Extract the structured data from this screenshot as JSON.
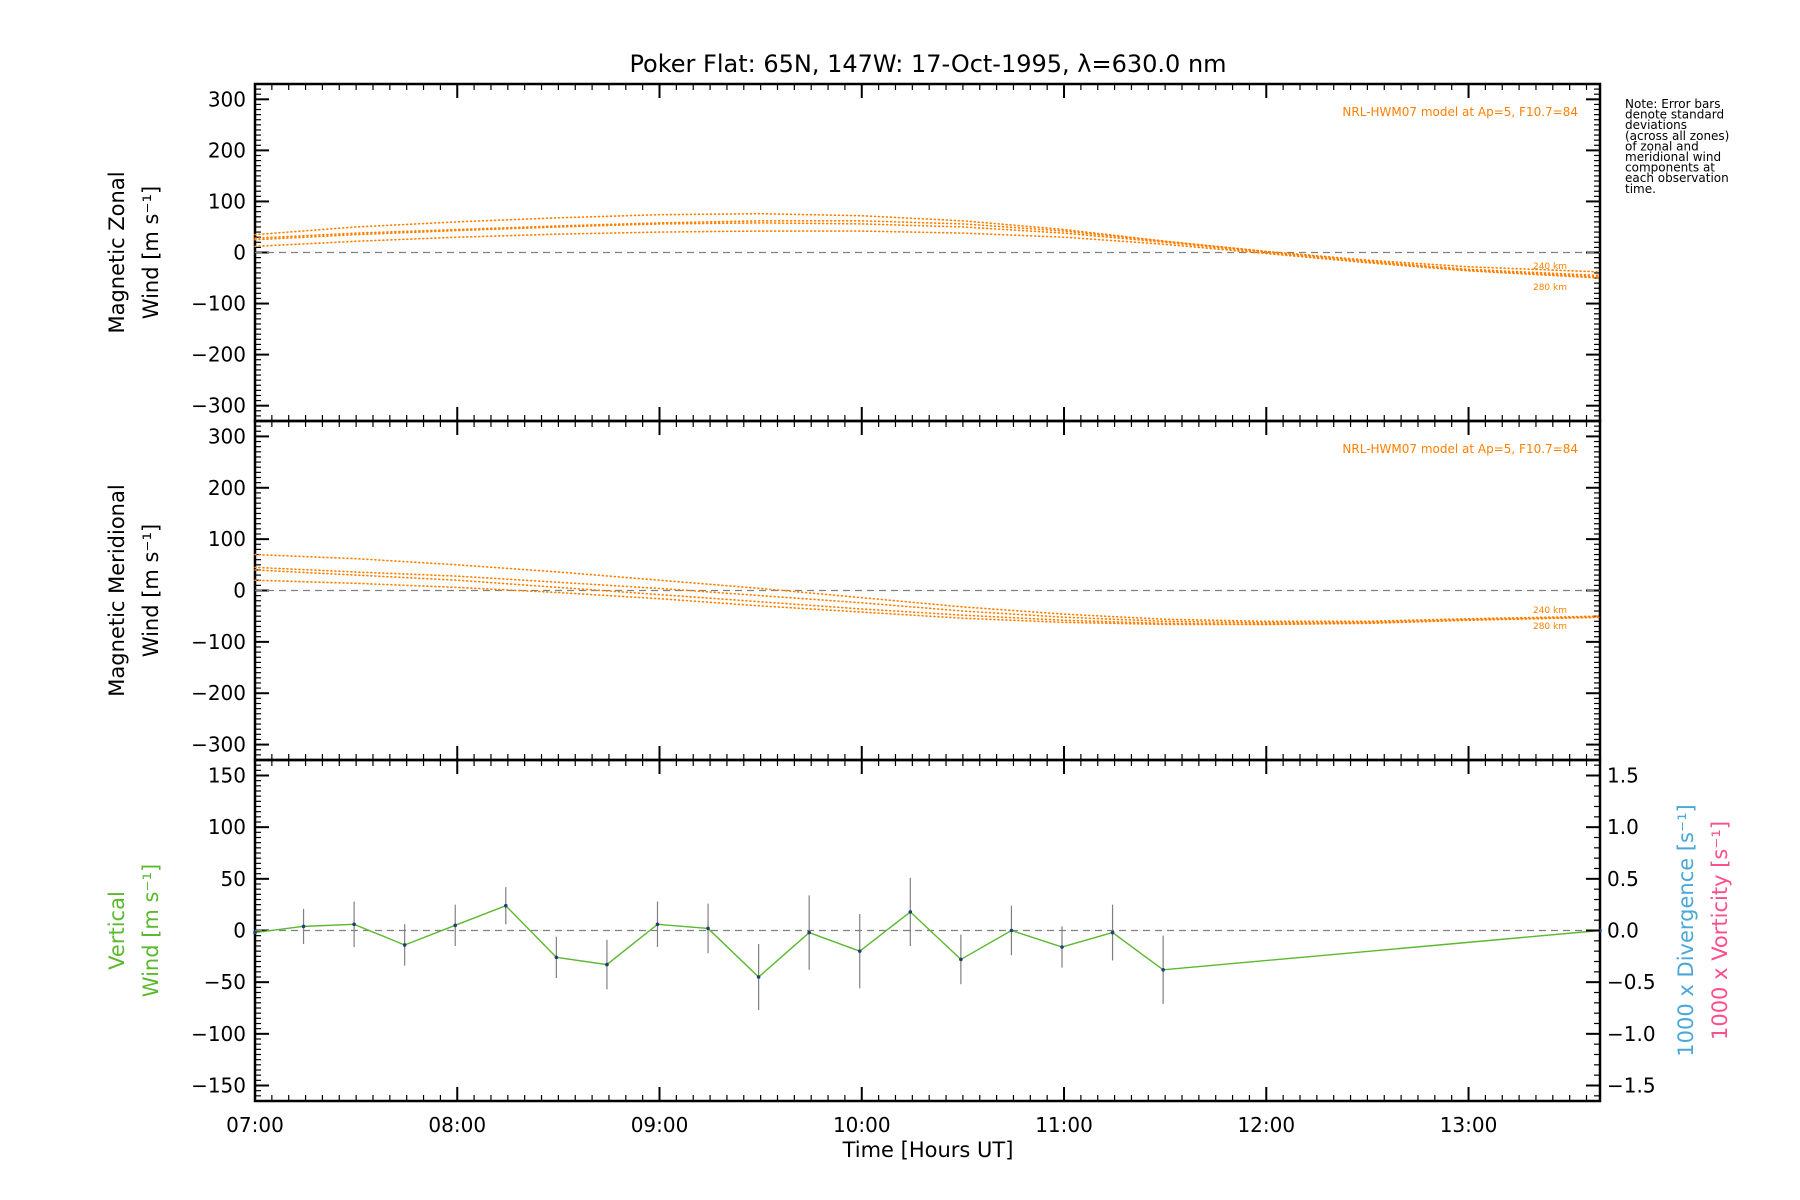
{
  "title": "Poker Flat: 65N, 147W: 17-Oct-1995, λ=630.0 nm",
  "note": [
    "Note: Error bars",
    "denote standard",
    "deviations",
    "(across all zones)",
    "of zonal and",
    "meridional wind",
    "components at",
    "each observation",
    "time."
  ],
  "xlabel": "Time [Hours UT]",
  "colors": {
    "model": "#ff8000",
    "vertical": "#5cb82e",
    "divergence": "#4aa8d8",
    "vorticity": "#ff4f8b",
    "zero_line": "#808080",
    "errorbar": "#808080"
  },
  "chart_data": [
    {
      "type": "line",
      "panel": "zonal",
      "ylabel_lines": [
        "Magnetic Zonal",
        "Wind [m s⁻¹]"
      ],
      "ylim": [
        -330,
        330
      ],
      "yticks": [
        -300,
        -200,
        -100,
        0,
        100,
        200,
        300
      ],
      "xlim": [
        7.0,
        13.65
      ],
      "xticks": [
        "07:00",
        "08:00",
        "09:00",
        "10:00",
        "11:00",
        "12:00",
        "13:00"
      ],
      "annotation": "NRL-HWM07 model at Ap=5, F10.7=84",
      "alt_labels": [
        "240 km",
        "280 km"
      ],
      "series": [
        {
          "x": [
            7.0,
            7.5,
            8.0,
            8.5,
            9.0,
            9.5,
            10.0,
            10.5,
            11.0,
            11.5,
            12.0,
            12.5,
            13.0,
            13.65
          ],
          "values": [
            35,
            50,
            60,
            68,
            74,
            76,
            72,
            62,
            45,
            22,
            2,
            -15,
            -28,
            -38
          ]
        },
        {
          "x": [
            7.0,
            7.5,
            8.0,
            8.5,
            9.0,
            9.5,
            10.0,
            10.5,
            11.0,
            11.5,
            12.0,
            12.5,
            13.0,
            13.65
          ],
          "values": [
            28,
            38,
            45,
            52,
            58,
            62,
            62,
            56,
            42,
            22,
            2,
            -17,
            -33,
            -45
          ]
        },
        {
          "x": [
            7.0,
            7.5,
            8.0,
            8.5,
            9.0,
            9.5,
            10.0,
            10.5,
            11.0,
            11.5,
            12.0,
            12.5,
            13.0,
            13.65
          ],
          "values": [
            25,
            35,
            43,
            50,
            56,
            58,
            56,
            50,
            38,
            20,
            0,
            -18,
            -35,
            -48
          ]
        },
        {
          "x": [
            7.0,
            7.5,
            8.0,
            8.5,
            9.0,
            9.5,
            10.0,
            10.5,
            11.0,
            11.5,
            12.0,
            12.5,
            13.0,
            13.65
          ],
          "values": [
            12,
            22,
            30,
            36,
            40,
            42,
            42,
            38,
            30,
            16,
            -2,
            -20,
            -36,
            -50
          ]
        }
      ]
    },
    {
      "type": "line",
      "panel": "meridional",
      "ylabel_lines": [
        "Magnetic Meridional",
        "Wind [m s⁻¹]"
      ],
      "ylim": [
        -330,
        330
      ],
      "yticks": [
        -300,
        -200,
        -100,
        0,
        100,
        200,
        300
      ],
      "xlim": [
        7.0,
        13.65
      ],
      "xticks": [
        "07:00",
        "08:00",
        "09:00",
        "10:00",
        "11:00",
        "12:00",
        "13:00"
      ],
      "annotation": "NRL-HWM07 model at Ap=5, F10.7=84",
      "alt_labels": [
        "240 km",
        "280 km"
      ],
      "series": [
        {
          "x": [
            7.0,
            7.5,
            8.0,
            8.5,
            9.0,
            9.5,
            10.0,
            10.5,
            11.0,
            11.5,
            12.0,
            12.5,
            13.0,
            13.65
          ],
          "values": [
            70,
            62,
            50,
            36,
            20,
            4,
            -14,
            -32,
            -46,
            -56,
            -60,
            -60,
            -55,
            -50
          ]
        },
        {
          "x": [
            7.0,
            7.5,
            8.0,
            8.5,
            9.0,
            9.5,
            10.0,
            10.5,
            11.0,
            11.5,
            12.0,
            12.5,
            13.0,
            13.65
          ],
          "values": [
            45,
            36,
            28,
            16,
            4,
            -10,
            -24,
            -40,
            -52,
            -60,
            -63,
            -62,
            -57,
            -52
          ]
        },
        {
          "x": [
            7.0,
            7.5,
            8.0,
            8.5,
            9.0,
            9.5,
            10.0,
            10.5,
            11.0,
            11.5,
            12.0,
            12.5,
            13.0,
            13.65
          ],
          "values": [
            40,
            30,
            20,
            6,
            -8,
            -22,
            -36,
            -48,
            -58,
            -64,
            -66,
            -64,
            -58,
            -52
          ]
        },
        {
          "x": [
            7.0,
            7.5,
            8.0,
            8.5,
            9.0,
            9.5,
            10.0,
            10.5,
            11.0,
            11.5,
            12.0,
            12.5,
            13.0,
            13.65
          ],
          "values": [
            20,
            14,
            6,
            -4,
            -16,
            -30,
            -42,
            -54,
            -62,
            -66,
            -66,
            -63,
            -57,
            -52
          ]
        }
      ]
    },
    {
      "type": "line",
      "panel": "vertical",
      "ylabel_lines": [
        "Vertical",
        "Wind [m s⁻¹]"
      ],
      "ylim": [
        -165,
        165
      ],
      "yticks": [
        -150,
        -100,
        -50,
        0,
        50,
        100,
        150
      ],
      "y2label_divergence": "1000 x Divergence [s⁻¹]",
      "y2label_vorticity": "1000 x Vorticity [s⁻¹]",
      "y2lim": [
        -1.65,
        1.65
      ],
      "y2ticks": [
        "−1.5",
        "−1.0",
        "−0.5",
        "0.0",
        "0.5",
        "1.0",
        "1.5"
      ],
      "xlim": [
        7.0,
        13.65
      ],
      "xticks": [
        "07:00",
        "08:00",
        "09:00",
        "10:00",
        "11:00",
        "12:00",
        "13:00"
      ],
      "series": [
        {
          "name": "Vertical wind",
          "x": [
            7.0,
            7.24,
            7.49,
            7.74,
            7.99,
            8.24,
            8.49,
            8.74,
            8.99,
            9.24,
            9.49,
            9.74,
            9.99,
            10.24,
            10.49,
            10.74,
            10.99,
            11.24,
            11.49,
            13.65
          ],
          "values": [
            -2,
            4,
            6,
            -14,
            5,
            24,
            -26,
            -33,
            6,
            2,
            -45,
            -2,
            -20,
            18,
            -28,
            0,
            -16,
            -2,
            -38,
            0
          ],
          "errors": [
            0,
            17,
            22,
            20,
            20,
            18,
            20,
            24,
            22,
            24,
            32,
            36,
            36,
            33,
            24,
            24,
            20,
            27,
            33,
            0
          ]
        }
      ]
    }
  ]
}
